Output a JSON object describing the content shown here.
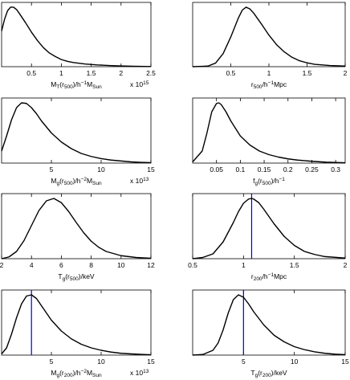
{
  "chart_data": [
    {
      "type": "line",
      "xlabel": "M_T(r_500)/h^-1 M_Sun",
      "xlabel_parts": [
        [
          "M",
          ""
        ],
        [
          "T",
          "sub"
        ],
        [
          "(r",
          ""
        ],
        [
          "500",
          "sub"
        ],
        [
          ")/h",
          ""
        ],
        [
          "−1",
          "sup"
        ],
        [
          "M",
          ""
        ],
        [
          "Sun",
          "sub"
        ]
      ],
      "xlim": [
        0.0,
        2.5
      ],
      "ylim": [
        0,
        1.08
      ],
      "xticks": [
        0.5,
        1,
        1.5,
        2,
        2.5
      ],
      "xtick_labels": [
        "0.5",
        "1",
        "1.5",
        "2",
        "2.5"
      ],
      "multiplier": "x 10",
      "multiplier_exp": "15",
      "x": [
        0.0,
        0.05,
        0.1,
        0.15,
        0.2,
        0.25,
        0.3,
        0.4,
        0.5,
        0.6,
        0.7,
        0.8,
        0.9,
        1.0,
        1.1,
        1.2,
        1.4,
        1.6,
        1.8,
        2.0,
        2.2,
        2.5
      ],
      "y": [
        0.6,
        0.8,
        0.94,
        1.0,
        1.0,
        0.96,
        0.89,
        0.74,
        0.58,
        0.44,
        0.32,
        0.23,
        0.17,
        0.12,
        0.09,
        0.07,
        0.045,
        0.03,
        0.02,
        0.012,
        0.007,
        0.003
      ]
    },
    {
      "type": "line",
      "xlabel": "r_500/h^-1 Mpc",
      "xlabel_parts": [
        [
          "r",
          ""
        ],
        [
          "500",
          "sub"
        ],
        [
          "/h",
          ""
        ],
        [
          "−1",
          "sup"
        ],
        [
          "Mpc",
          ""
        ]
      ],
      "xlim": [
        0.0,
        2.0
      ],
      "ylim": [
        0,
        1.08
      ],
      "xticks": [
        0.5,
        1,
        1.5,
        2
      ],
      "xtick_labels": [
        "0.5",
        "1",
        "1.5",
        "2"
      ],
      "x": [
        0.0,
        0.2,
        0.3,
        0.4,
        0.5,
        0.6,
        0.65,
        0.7,
        0.75,
        0.8,
        0.9,
        1.0,
        1.1,
        1.2,
        1.3,
        1.4,
        1.5,
        1.6,
        1.8,
        2.0
      ],
      "y": [
        0.0,
        0.01,
        0.06,
        0.22,
        0.5,
        0.82,
        0.95,
        1.0,
        0.97,
        0.9,
        0.72,
        0.53,
        0.37,
        0.25,
        0.16,
        0.1,
        0.065,
        0.04,
        0.02,
        0.01
      ]
    },
    {
      "type": "line",
      "xlabel": "M_g(r_500)/h^-2 M_Sun",
      "xlabel_parts": [
        [
          "M",
          ""
        ],
        [
          "g",
          "sub"
        ],
        [
          "(r",
          ""
        ],
        [
          "500",
          "sub"
        ],
        [
          ")/h",
          ""
        ],
        [
          "−2",
          "sup"
        ],
        [
          "M",
          ""
        ],
        [
          "Sun",
          "sub"
        ]
      ],
      "xlim": [
        0.0,
        15.0
      ],
      "ylim": [
        0,
        1.08
      ],
      "xticks": [
        5,
        10,
        15
      ],
      "xtick_labels": [
        "5",
        "10",
        "15"
      ],
      "multiplier": "x 10",
      "multiplier_exp": "13",
      "x": [
        0.0,
        0.5,
        1.0,
        1.5,
        2.0,
        2.5,
        3.0,
        3.5,
        4.0,
        5.0,
        6.0,
        7.0,
        8.0,
        9.0,
        10.0,
        11.0,
        12.0,
        13.0,
        14.0,
        15.0
      ],
      "y": [
        0.2,
        0.45,
        0.72,
        0.92,
        1.0,
        0.99,
        0.92,
        0.82,
        0.7,
        0.5,
        0.35,
        0.24,
        0.16,
        0.11,
        0.075,
        0.05,
        0.035,
        0.02,
        0.012,
        0.007
      ]
    },
    {
      "type": "line",
      "xlabel": "f_g(r_500)/h^-1",
      "xlabel_parts": [
        [
          "f",
          ""
        ],
        [
          "g",
          "sub"
        ],
        [
          "(r",
          ""
        ],
        [
          "500",
          "sub"
        ],
        [
          ")/h",
          ""
        ],
        [
          "−1",
          "sup"
        ]
      ],
      "xlim": [
        0.0,
        0.32
      ],
      "ylim": [
        0,
        1.08
      ],
      "xticks": [
        0.05,
        0.1,
        0.15,
        0.2,
        0.25,
        0.3
      ],
      "xtick_labels": [
        "0.05",
        "0.1",
        "0.15",
        "0.2",
        "0.25",
        "0.3"
      ],
      "x": [
        0.0,
        0.02,
        0.03,
        0.04,
        0.05,
        0.055,
        0.06,
        0.07,
        0.08,
        0.1,
        0.12,
        0.14,
        0.16,
        0.18,
        0.2,
        0.22,
        0.25,
        0.28,
        0.32
      ],
      "y": [
        0.02,
        0.2,
        0.5,
        0.85,
        0.99,
        1.0,
        0.97,
        0.85,
        0.7,
        0.45,
        0.3,
        0.2,
        0.14,
        0.1,
        0.07,
        0.05,
        0.03,
        0.015,
        0.005
      ]
    },
    {
      "type": "line",
      "xlabel": "T_g(r_500)/keV",
      "xlabel_parts": [
        [
          "T",
          ""
        ],
        [
          "g",
          "sub"
        ],
        [
          "(r",
          ""
        ],
        [
          "500",
          "sub"
        ],
        [
          ")/keV",
          ""
        ]
      ],
      "xlim": [
        2.0,
        12.0
      ],
      "ylim": [
        0,
        1.08
      ],
      "xticks": [
        2,
        4,
        6,
        8,
        10,
        12
      ],
      "xtick_labels": [
        "2",
        "4",
        "6",
        "8",
        "10",
        "12"
      ],
      "x": [
        2.0,
        2.5,
        3.0,
        3.5,
        4.0,
        4.5,
        5.0,
        5.5,
        6.0,
        6.5,
        7.0,
        7.5,
        8.0,
        8.5,
        9.0,
        10.0,
        11.0,
        12.0
      ],
      "y": [
        0.0,
        0.03,
        0.12,
        0.3,
        0.55,
        0.8,
        0.96,
        1.0,
        0.93,
        0.78,
        0.6,
        0.43,
        0.29,
        0.19,
        0.12,
        0.05,
        0.02,
        0.008
      ]
    },
    {
      "type": "line",
      "xlabel": "r_200/h^-1 Mpc",
      "xlabel_parts": [
        [
          "r",
          ""
        ],
        [
          "200",
          "sub"
        ],
        [
          "/h",
          ""
        ],
        [
          "−1",
          "sup"
        ],
        [
          "Mpc",
          ""
        ]
      ],
      "xlim": [
        0.5,
        2.0
      ],
      "ylim": [
        0,
        1.08
      ],
      "xticks": [
        0.5,
        1,
        1.5,
        2
      ],
      "xtick_labels": [
        "0.5",
        "1",
        "1.5",
        "2"
      ],
      "vline": 1.08,
      "vline_color": "#0000cc",
      "x": [
        0.5,
        0.6,
        0.7,
        0.8,
        0.9,
        0.95,
        1.0,
        1.05,
        1.08,
        1.1,
        1.15,
        1.2,
        1.3,
        1.4,
        1.5,
        1.6,
        1.7,
        1.8,
        2.0
      ],
      "y": [
        0.0,
        0.02,
        0.08,
        0.28,
        0.6,
        0.78,
        0.92,
        0.99,
        1.0,
        0.99,
        0.93,
        0.82,
        0.58,
        0.37,
        0.22,
        0.12,
        0.07,
        0.035,
        0.01
      ]
    },
    {
      "type": "line",
      "xlabel": "M_g(r_200)/h^-2 M_Sun",
      "xlabel_parts": [
        [
          "M",
          ""
        ],
        [
          "g",
          "sub"
        ],
        [
          "(r",
          ""
        ],
        [
          "200",
          "sub"
        ],
        [
          ")/h",
          ""
        ],
        [
          "−2",
          "sup"
        ],
        [
          "M",
          ""
        ],
        [
          "Sun",
          "sub"
        ]
      ],
      "xlim": [
        0.0,
        15.0
      ],
      "ylim": [
        0,
        1.08
      ],
      "xticks": [
        5,
        10,
        15
      ],
      "xtick_labels": [
        "5",
        "10",
        "15"
      ],
      "multiplier": "x 10",
      "multiplier_exp": "13",
      "vline": 3.0,
      "vline_color": "#0000cc",
      "x": [
        0.0,
        0.5,
        1.0,
        1.5,
        2.0,
        2.5,
        3.0,
        3.5,
        4.0,
        4.5,
        5.0,
        6.0,
        7.0,
        8.0,
        9.0,
        10.0,
        11.0,
        12.0,
        13.0,
        14.0,
        15.0
      ],
      "y": [
        0.02,
        0.12,
        0.35,
        0.62,
        0.85,
        0.98,
        1.0,
        0.94,
        0.82,
        0.7,
        0.58,
        0.4,
        0.27,
        0.18,
        0.12,
        0.08,
        0.05,
        0.03,
        0.02,
        0.012,
        0.006
      ]
    },
    {
      "type": "line",
      "xlabel": "T_g(r_200)/keV",
      "xlabel_parts": [
        [
          "T",
          ""
        ],
        [
          "g",
          "sub"
        ],
        [
          "(r",
          ""
        ],
        [
          "200",
          "sub"
        ],
        [
          ")/keV",
          ""
        ]
      ],
      "xlim": [
        0.0,
        15.0
      ],
      "ylim": [
        0,
        1.08
      ],
      "xticks": [
        5,
        10,
        15
      ],
      "xtick_labels": [
        "5",
        "10",
        "15"
      ],
      "vline": 5.0,
      "vline_color": "#0000cc",
      "x": [
        0.0,
        1.0,
        2.0,
        2.5,
        3.0,
        3.5,
        4.0,
        4.5,
        5.0,
        5.5,
        6.0,
        7.0,
        8.0,
        9.0,
        10.0,
        11.0,
        12.0,
        13.0,
        14.0,
        15.0
      ],
      "y": [
        0.0,
        0.01,
        0.08,
        0.2,
        0.42,
        0.7,
        0.92,
        1.0,
        0.96,
        0.85,
        0.72,
        0.5,
        0.33,
        0.22,
        0.14,
        0.09,
        0.055,
        0.03,
        0.015,
        0.008
      ]
    }
  ]
}
